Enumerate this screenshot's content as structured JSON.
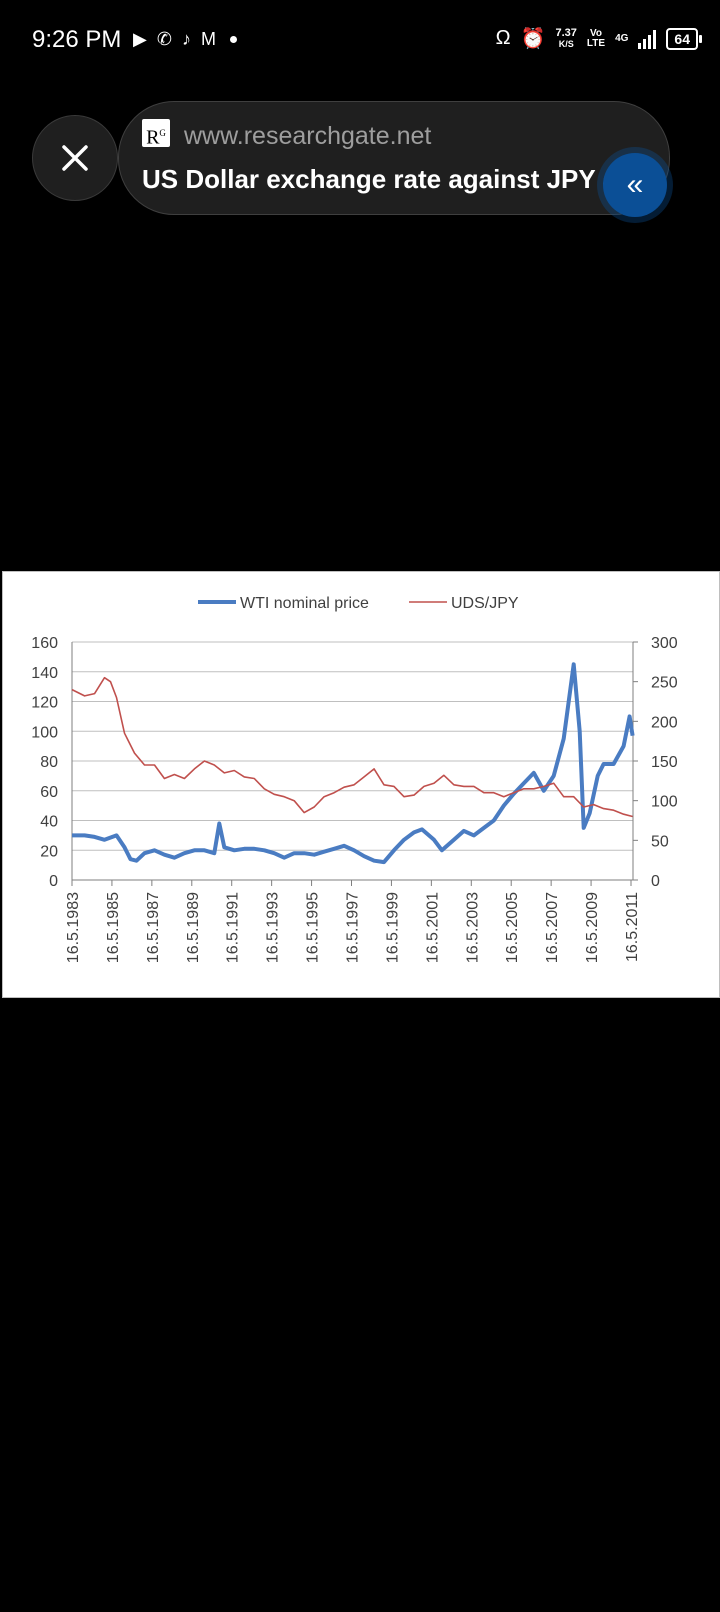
{
  "status_bar": {
    "time": "9:26 PM",
    "net_speed": "7.37",
    "net_unit": "K/S",
    "network_vo": "Vo",
    "network_lte": "LTE",
    "network_4g": "4G",
    "battery": "64"
  },
  "browser": {
    "site_logo": "RG",
    "domain": "www.researchgate.net",
    "title": "US Dollar exchange rate against JPY a"
  },
  "colors": {
    "wti": "#4a7cc2",
    "usdjpy": "#c0504d",
    "accent": "#0b4f96"
  },
  "chart_data": {
    "type": "line",
    "title": "",
    "series": [
      {
        "name": "WTI nominal price",
        "axis": "left",
        "points": [
          [
            1983.37,
            30
          ],
          [
            1984.0,
            30
          ],
          [
            1984.5,
            29
          ],
          [
            1985.0,
            27
          ],
          [
            1985.6,
            30
          ],
          [
            1986.0,
            22
          ],
          [
            1986.3,
            14
          ],
          [
            1986.6,
            13
          ],
          [
            1987.0,
            18
          ],
          [
            1987.5,
            20
          ],
          [
            1988.0,
            17
          ],
          [
            1988.5,
            15
          ],
          [
            1989.0,
            18
          ],
          [
            1989.5,
            20
          ],
          [
            1990.0,
            20
          ],
          [
            1990.5,
            18
          ],
          [
            1990.75,
            38
          ],
          [
            1991.0,
            22
          ],
          [
            1991.5,
            20
          ],
          [
            1992.0,
            21
          ],
          [
            1992.5,
            21
          ],
          [
            1993.0,
            20
          ],
          [
            1993.5,
            18
          ],
          [
            1994.0,
            15
          ],
          [
            1994.5,
            18
          ],
          [
            1995.0,
            18
          ],
          [
            1995.5,
            17
          ],
          [
            1996.0,
            19
          ],
          [
            1996.5,
            21
          ],
          [
            1997.0,
            23
          ],
          [
            1997.5,
            20
          ],
          [
            1998.0,
            16
          ],
          [
            1998.5,
            13
          ],
          [
            1999.0,
            12
          ],
          [
            1999.5,
            20
          ],
          [
            2000.0,
            27
          ],
          [
            2000.5,
            32
          ],
          [
            2000.9,
            34
          ],
          [
            2001.5,
            27
          ],
          [
            2001.9,
            20
          ],
          [
            2002.5,
            27
          ],
          [
            2003.0,
            33
          ],
          [
            2003.5,
            30
          ],
          [
            2004.0,
            35
          ],
          [
            2004.5,
            40
          ],
          [
            2005.0,
            50
          ],
          [
            2005.5,
            58
          ],
          [
            2006.0,
            65
          ],
          [
            2006.5,
            72
          ],
          [
            2007.0,
            60
          ],
          [
            2007.5,
            70
          ],
          [
            2008.0,
            95
          ],
          [
            2008.5,
            145
          ],
          [
            2008.8,
            100
          ],
          [
            2009.0,
            35
          ],
          [
            2009.3,
            45
          ],
          [
            2009.7,
            70
          ],
          [
            2010.0,
            78
          ],
          [
            2010.5,
            78
          ],
          [
            2011.0,
            90
          ],
          [
            2011.3,
            110
          ],
          [
            2011.45,
            97
          ]
        ]
      },
      {
        "name": "UDS/JPY",
        "axis": "right",
        "points": [
          [
            1983.37,
            240
          ],
          [
            1984.0,
            232
          ],
          [
            1984.5,
            235
          ],
          [
            1985.0,
            255
          ],
          [
            1985.3,
            250
          ],
          [
            1985.6,
            230
          ],
          [
            1986.0,
            185
          ],
          [
            1986.5,
            160
          ],
          [
            1987.0,
            145
          ],
          [
            1987.5,
            145
          ],
          [
            1988.0,
            128
          ],
          [
            1988.5,
            133
          ],
          [
            1989.0,
            128
          ],
          [
            1989.5,
            140
          ],
          [
            1990.0,
            150
          ],
          [
            1990.5,
            145
          ],
          [
            1991.0,
            135
          ],
          [
            1991.5,
            138
          ],
          [
            1992.0,
            130
          ],
          [
            1992.5,
            128
          ],
          [
            1993.0,
            115
          ],
          [
            1993.5,
            108
          ],
          [
            1994.0,
            105
          ],
          [
            1994.5,
            100
          ],
          [
            1995.0,
            85
          ],
          [
            1995.5,
            92
          ],
          [
            1996.0,
            105
          ],
          [
            1996.5,
            110
          ],
          [
            1997.0,
            117
          ],
          [
            1997.5,
            120
          ],
          [
            1998.0,
            130
          ],
          [
            1998.5,
            140
          ],
          [
            1999.0,
            120
          ],
          [
            1999.5,
            118
          ],
          [
            2000.0,
            105
          ],
          [
            2000.5,
            107
          ],
          [
            2001.0,
            118
          ],
          [
            2001.5,
            122
          ],
          [
            2002.0,
            132
          ],
          [
            2002.5,
            120
          ],
          [
            2003.0,
            118
          ],
          [
            2003.5,
            118
          ],
          [
            2004.0,
            110
          ],
          [
            2004.5,
            110
          ],
          [
            2005.0,
            105
          ],
          [
            2005.5,
            110
          ],
          [
            2006.0,
            115
          ],
          [
            2006.5,
            115
          ],
          [
            2007.0,
            118
          ],
          [
            2007.5,
            122
          ],
          [
            2008.0,
            105
          ],
          [
            2008.5,
            105
          ],
          [
            2009.0,
            92
          ],
          [
            2009.5,
            95
          ],
          [
            2010.0,
            90
          ],
          [
            2010.5,
            88
          ],
          [
            2011.0,
            83
          ],
          [
            2011.45,
            80
          ]
        ]
      }
    ],
    "y_left": {
      "min": 0,
      "max": 160,
      "ticks": [
        "0",
        "20",
        "40",
        "60",
        "80",
        "100",
        "120",
        "140",
        "160"
      ]
    },
    "y_right": {
      "min": 0,
      "max": 300,
      "ticks": [
        "0",
        "50",
        "100",
        "150",
        "200",
        "250",
        "300"
      ]
    },
    "x_range": [
      1983.37,
      2011.37
    ],
    "x_ticks": [
      "16.5.1983",
      "16.5.1985",
      "16.5.1987",
      "16.5.1989",
      "16.5.1991",
      "16.5.1993",
      "16.5.1995",
      "16.5.1997",
      "16.5.1999",
      "16.5.2001",
      "16.5.2003",
      "16.5.2005",
      "16.5.2007",
      "16.5.2009",
      "16.5.2011"
    ],
    "xlabel": "",
    "ylabel": "",
    "grid": true,
    "legend_position": "top-center"
  }
}
